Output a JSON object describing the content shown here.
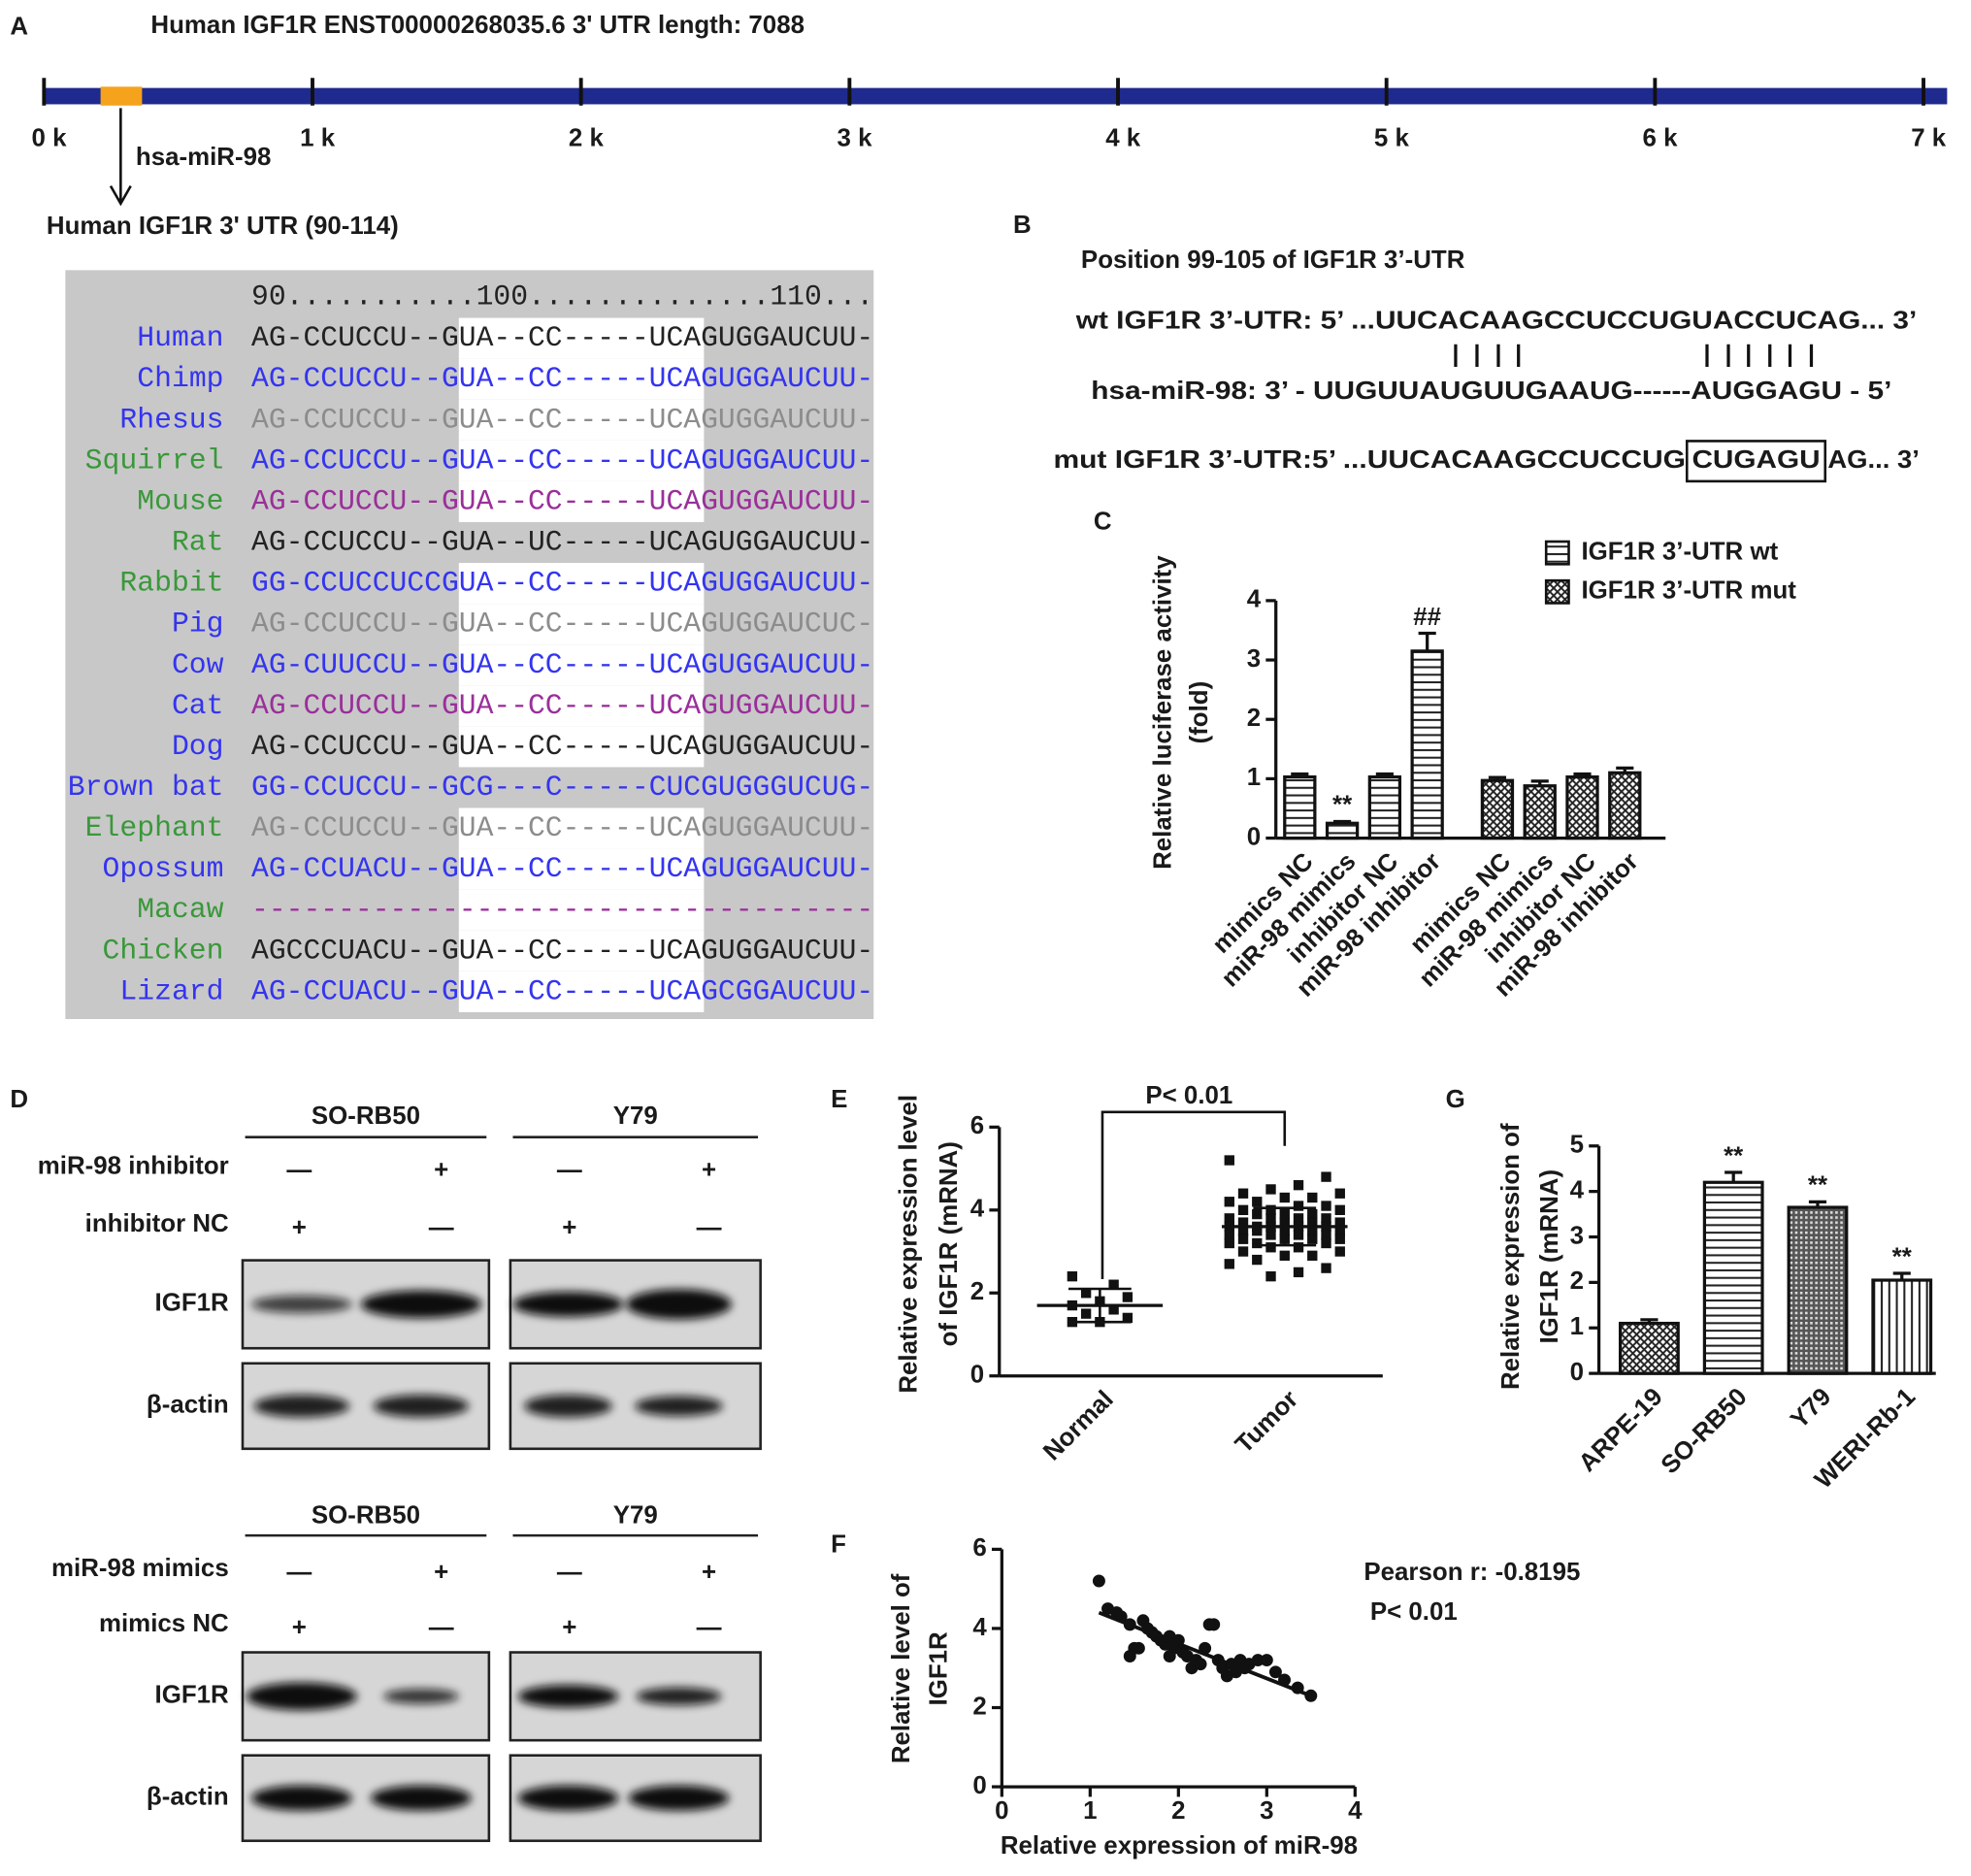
{
  "panel_labels": [
    "A",
    "B",
    "C",
    "D",
    "E",
    "F",
    "G"
  ],
  "panel_a": {
    "title": "Human IGF1R ENST00000268035.6 3' UTR length: 7088",
    "xlim": [
      0,
      7088
    ],
    "xticks": [
      {
        "value": 0,
        "label": "0 k"
      },
      {
        "value": 1000,
        "label": "1 k"
      },
      {
        "value": 2000,
        "label": "2 k"
      },
      {
        "value": 3000,
        "label": "3 k"
      },
      {
        "value": 4000,
        "label": "4 k"
      },
      {
        "value": 5000,
        "label": "5 k"
      },
      {
        "value": 6000,
        "label": "6 k"
      },
      {
        "value": 7000,
        "label": "7 k"
      }
    ],
    "site_label": "hsa-miR-98",
    "region_label": "Human IGF1R 3' UTR (90-114)",
    "ruler": "90...........100..............110...",
    "alignment": [
      {
        "species": "Human",
        "sequence": "AG-CCUCCU--GUA--CC-----UCAGUGGAUCUU-",
        "species_color": "#3434f0",
        "sequence_color": "#222222",
        "highlight": true
      },
      {
        "species": "Chimp",
        "sequence": "AG-CCUCCU--GUA--CC-----UCAGUGGAUCUU-",
        "species_color": "#3434f0",
        "sequence_color": "#3434f0",
        "highlight": true
      },
      {
        "species": "Rhesus",
        "sequence": "AG-CCUCCU--GUA--CC-----UCAGUGGAUCUU-",
        "species_color": "#3434f0",
        "sequence_color": "#8c8c8c",
        "highlight": true
      },
      {
        "species": "Squirrel",
        "sequence": "AG-CCUCCU--GUA--CC-----UCAGUGGAUCUU-",
        "species_color": "#3a983a",
        "sequence_color": "#3434f0",
        "highlight": true
      },
      {
        "species": "Mouse",
        "sequence": "AG-CCUCCU--GUA--CC-----UCAGUGGAUCUU-",
        "species_color": "#3a983a",
        "sequence_color": "#9a2f9a",
        "highlight": true
      },
      {
        "species": "Rat",
        "sequence": "AG-CCUCCU--GUA--UC-----UCAGUGGAUCUU-",
        "species_color": "#3a983a",
        "sequence_color": "#222222",
        "highlight": false
      },
      {
        "species": "Rabbit",
        "sequence": "GG-CCUCCUCCGUA--CC-----UCAGUGGAUCUU-",
        "species_color": "#3a983a",
        "sequence_color": "#3434f0",
        "highlight": true
      },
      {
        "species": "Pig",
        "sequence": "AG-CCUCCU--GUA--CC-----UCAGUGGAUCUC-",
        "species_color": "#3434f0",
        "sequence_color": "#8c8c8c",
        "highlight": true
      },
      {
        "species": "Cow",
        "sequence": "AG-CUUCCU--GUA--CC-----UCAGUGGAUCUU-",
        "species_color": "#3434f0",
        "sequence_color": "#3434f0",
        "highlight": true
      },
      {
        "species": "Cat",
        "sequence": "AG-CCUCCU--GUA--CC-----UCAGUGGAUCUU-",
        "species_color": "#3434f0",
        "sequence_color": "#9a2f9a",
        "highlight": true
      },
      {
        "species": "Dog",
        "sequence": "AG-CCUCCU--GUA--CC-----UCAGUGGAUCUU-",
        "species_color": "#3434f0",
        "sequence_color": "#222222",
        "highlight": true
      },
      {
        "species": "Brown bat",
        "sequence": "GG-CCUCCU--GCG---C-----CUCGUGGGUCUG-",
        "species_color": "#3434f0",
        "sequence_color": "#3434f0",
        "highlight": false
      },
      {
        "species": "Elephant",
        "sequence": "AG-CCUCCU--GUA--CC-----UCAGUGGAUCUU-",
        "species_color": "#3a983a",
        "sequence_color": "#8c8c8c",
        "highlight": true
      },
      {
        "species": "Opossum",
        "sequence": "AG-CCUACU--GUA--CC-----UCAGUGGAUCUU-",
        "species_color": "#3434f0",
        "sequence_color": "#3434f0",
        "highlight": true
      },
      {
        "species": "Macaw",
        "sequence": "------------------------------------",
        "species_color": "#3a983a",
        "sequence_color": "#9a2f9a",
        "highlight": true
      },
      {
        "species": "Chicken",
        "sequence": "AGCCCUACU--GUA--CC-----UCAGUGGAUCUU-",
        "species_color": "#3a983a",
        "sequence_color": "#222222",
        "highlight": true
      },
      {
        "species": "Lizard",
        "sequence": "AG-CCUACU--GUA--CC-----UCAGCGGAUCUU-",
        "species_color": "#3434f0",
        "sequence_color": "#3434f0",
        "highlight": true
      }
    ]
  },
  "panel_b": {
    "title": "Position 99-105 of IGF1R  3’-UTR",
    "wt": "wt IGF1R 3’-UTR: 5’ ...UUCACAAGCCUCCUGUACCUCAG... 3’",
    "mirna": "hsa-miR-98: 3’ - UUGUUAUGUUGAAUG------AUGGAGU - 5’",
    "mut": [
      "mut IGF1R 3’-UTR:5’  ...UUCACAAGCCUCCUG",
      "CUGAGU",
      "AG... 3’"
    ]
  },
  "panel_d": {
    "blots": [
      {
        "cell_lines": [
          "SO-RB50",
          "Y79"
        ],
        "treatments": [
          {
            "name": "miR-98 inhibitor",
            "signs": [
              "—",
              "+",
              "—",
              "+"
            ]
          },
          {
            "name": "inhibitor NC",
            "signs": [
              "+",
              "—",
              "+",
              "—"
            ]
          }
        ],
        "proteins": [
          "IGF1R",
          "β-actin"
        ]
      },
      {
        "cell_lines": [
          "SO-RB50",
          "Y79"
        ],
        "treatments": [
          {
            "name": "miR-98 mimics",
            "signs": [
              "—",
              "+",
              "—",
              "+"
            ]
          },
          {
            "name": "mimics NC",
            "signs": [
              "+",
              "—",
              "+",
              "—"
            ]
          }
        ],
        "proteins": [
          "IGF1R",
          "β-actin"
        ]
      }
    ]
  },
  "chart_data": [
    {
      "type": "bar",
      "ylabel": [
        "Relative luciferase activity",
        "(fold)"
      ],
      "categories": [
        "mimics NC",
        "miR-98 mimics",
        "inhibitor NC",
        "miR-98 inhibitor",
        "mimics NC",
        "miR-98 mimics",
        "inhibitor NC",
        "miR-98 inhibitor"
      ],
      "series": [
        {
          "name": "IGF1R 3’-UTR wt",
          "pattern": "horizontal",
          "values": [
            1.03,
            0.25,
            1.03,
            3.15,
            null,
            null,
            null,
            null
          ],
          "errors": [
            0.05,
            0.03,
            0.05,
            0.3,
            null,
            null,
            null,
            null
          ],
          "markers": [
            null,
            "**",
            null,
            "##",
            null,
            null,
            null,
            null
          ]
        },
        {
          "name": "IGF1R 3’-UTR mut",
          "pattern": "crosshatch",
          "values": [
            null,
            null,
            null,
            null,
            0.97,
            0.88,
            1.03,
            1.1
          ],
          "errors": [
            null,
            null,
            null,
            null,
            0.05,
            0.08,
            0.05,
            0.08
          ]
        }
      ],
      "ylim": [
        0,
        4
      ],
      "yticks": [
        0,
        1,
        2,
        3,
        4
      ],
      "legend": "upper right"
    },
    {
      "type": "dot",
      "ylabel": [
        "Relative expression level",
        "of IGF1R (mRNA)"
      ],
      "annotation": "P< 0.01",
      "groups": [
        {
          "name": "Normal",
          "values": [
            2.4,
            2.2,
            2.0,
            1.9,
            1.8,
            1.7,
            1.6,
            1.5,
            1.4,
            1.3,
            1.3
          ],
          "mean": 1.7,
          "sd": 0.4
        },
        {
          "name": "Tumor",
          "values": [
            5.2,
            4.8,
            4.6,
            4.5,
            4.4,
            4.4,
            4.3,
            4.3,
            4.2,
            4.2,
            4.1,
            4.1,
            4.0,
            4.0,
            4.0,
            3.9,
            3.9,
            3.9,
            3.8,
            3.8,
            3.8,
            3.8,
            3.7,
            3.7,
            3.7,
            3.7,
            3.6,
            3.6,
            3.6,
            3.6,
            3.6,
            3.5,
            3.5,
            3.5,
            3.5,
            3.5,
            3.4,
            3.4,
            3.4,
            3.4,
            3.3,
            3.3,
            3.3,
            3.3,
            3.2,
            3.2,
            3.2,
            3.1,
            3.1,
            3.0,
            3.0,
            2.9,
            2.9,
            2.8,
            2.7,
            2.6,
            2.5,
            2.4
          ],
          "mean": 3.6,
          "sd": 0.45
        }
      ],
      "ylim": [
        0,
        6
      ],
      "yticks": [
        0,
        2,
        4,
        6
      ]
    },
    {
      "type": "bar",
      "ylabel": [
        "Relative expression of",
        "IGF1R (mRNA)"
      ],
      "categories": [
        "ARPE-19",
        "SO-RB50",
        "Y79",
        "WERI-Rb-1"
      ],
      "series": [
        {
          "patterns": [
            "crosshatch",
            "horizontal",
            "dense",
            "vertical"
          ],
          "values": [
            1.1,
            4.2,
            3.65,
            2.05
          ],
          "errors": [
            0.08,
            0.22,
            0.12,
            0.15
          ],
          "markers": [
            null,
            "**",
            "**",
            "**"
          ]
        }
      ],
      "ylim": [
        0,
        5
      ],
      "yticks": [
        0,
        1,
        2,
        3,
        4,
        5
      ]
    },
    {
      "type": "scatter",
      "annotations": [
        "Pearson r: -0.8195",
        "P< 0.01"
      ],
      "xlabel": "Relative expression of miR-98",
      "ylabel": [
        "Relative level of",
        "IGF1R"
      ],
      "x": [
        1.1,
        1.2,
        1.3,
        1.35,
        1.45,
        1.5,
        1.55,
        1.6,
        1.65,
        1.7,
        1.75,
        1.8,
        1.85,
        1.9,
        1.95,
        2.0,
        2.05,
        2.1,
        2.15,
        2.2,
        2.3,
        2.35,
        2.4,
        2.45,
        2.5,
        2.55,
        2.6,
        2.7,
        2.75,
        2.8,
        2.9,
        3.0,
        3.1,
        3.2,
        3.35,
        3.5,
        1.45,
        2.25,
        2.65,
        1.9
      ],
      "y": [
        5.2,
        4.5,
        4.4,
        4.3,
        4.1,
        3.5,
        3.5,
        4.2,
        4.0,
        3.9,
        3.8,
        3.7,
        3.6,
        3.8,
        3.5,
        3.7,
        3.4,
        3.3,
        3.0,
        3.2,
        3.5,
        4.1,
        4.1,
        3.2,
        3.0,
        2.8,
        3.1,
        3.2,
        3.0,
        3.1,
        3.2,
        3.2,
        2.9,
        2.7,
        2.5,
        2.3,
        3.3,
        3.1,
        2.9,
        3.3
      ],
      "fit": {
        "x": [
          1.1,
          3.5
        ],
        "y": [
          4.4,
          2.3
        ]
      },
      "xlim": [
        0,
        4
      ],
      "xticks": [
        0,
        1,
        2,
        3,
        4
      ],
      "ylim": [
        0,
        6
      ],
      "yticks": [
        0,
        2,
        4,
        6
      ]
    }
  ]
}
